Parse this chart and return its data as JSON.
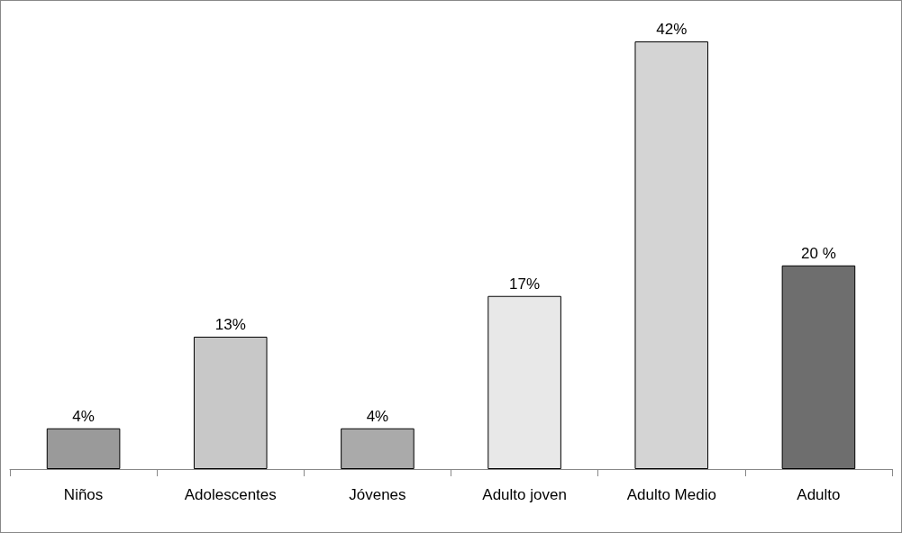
{
  "chart_data": {
    "type": "bar",
    "categories": [
      "Niños",
      "Adolescentes",
      "Jóvenes",
      "Adulto joven",
      "Adulto Medio",
      "Adulto"
    ],
    "values": [
      4,
      13,
      4,
      17,
      42,
      20
    ],
    "value_labels": [
      "4%",
      "13%",
      "4%",
      "17%",
      "42%",
      "20 %"
    ],
    "colors": [
      "#9a9a9a",
      "#c8c8c8",
      "#aaaaaa",
      "#e8e8e8",
      "#d4d4d4",
      "#6e6e6e"
    ]
  }
}
